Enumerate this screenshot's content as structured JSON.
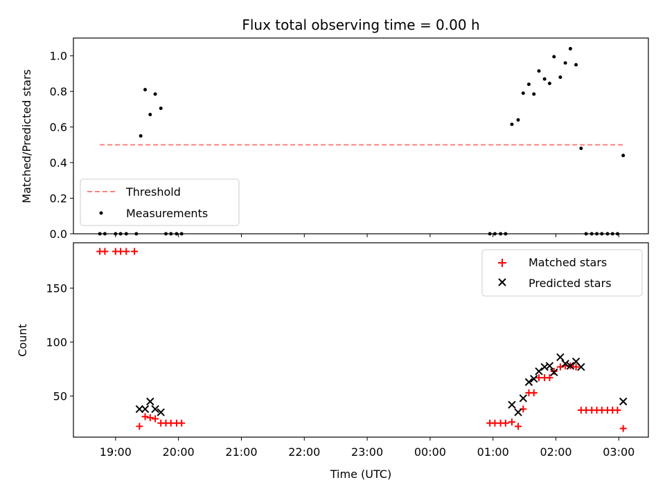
{
  "chart_data": [
    {
      "type": "scatter",
      "title": "Flux total observing time = 0.00 h",
      "ylabel": "Matched/Predicted stars",
      "xlabel": "",
      "ylim": [
        0,
        1.1
      ],
      "yticks": [
        "0.0",
        "0.2",
        "0.4",
        "0.6",
        "0.8",
        "1.0"
      ],
      "legend_position": "lower-left",
      "threshold": {
        "name": "Threshold",
        "value": 0.5,
        "x_start": 18.75,
        "x_end": 27.08,
        "color": "#ff7f7f"
      },
      "series": [
        {
          "name": "Measurements",
          "color": "#000000",
          "points": [
            [
              18.75,
              0.0
            ],
            [
              18.83,
              0.0
            ],
            [
              19.0,
              0.0
            ],
            [
              19.08,
              0.0
            ],
            [
              19.17,
              0.0
            ],
            [
              19.33,
              0.0
            ],
            [
              19.4,
              0.55
            ],
            [
              19.47,
              0.81
            ],
            [
              19.55,
              0.67
            ],
            [
              19.63,
              0.785
            ],
            [
              19.72,
              0.705
            ],
            [
              19.8,
              0.0
            ],
            [
              19.88,
              0.0
            ],
            [
              19.97,
              0.0
            ],
            [
              20.05,
              0.0
            ],
            [
              24.95,
              0.0
            ],
            [
              25.03,
              0.0
            ],
            [
              25.12,
              0.0
            ],
            [
              25.2,
              0.0
            ],
            [
              25.3,
              0.615
            ],
            [
              25.4,
              0.64
            ],
            [
              25.48,
              0.79
            ],
            [
              25.57,
              0.84
            ],
            [
              25.65,
              0.785
            ],
            [
              25.73,
              0.915
            ],
            [
              25.82,
              0.87
            ],
            [
              25.9,
              0.845
            ],
            [
              25.97,
              0.995
            ],
            [
              26.07,
              0.88
            ],
            [
              26.15,
              0.96
            ],
            [
              26.23,
              1.04
            ],
            [
              26.32,
              0.95
            ],
            [
              26.4,
              0.48
            ],
            [
              26.48,
              0.0
            ],
            [
              26.57,
              0.0
            ],
            [
              26.65,
              0.0
            ],
            [
              26.73,
              0.0
            ],
            [
              26.82,
              0.0
            ],
            [
              26.9,
              0.0
            ],
            [
              26.98,
              0.0
            ],
            [
              27.07,
              0.44
            ]
          ]
        }
      ]
    },
    {
      "type": "scatter",
      "title": "",
      "xlabel": "Time (UTC)",
      "ylabel": "Count",
      "ylim": [
        12,
        192
      ],
      "yticks": [
        "50",
        "100",
        "150"
      ],
      "xticks": [
        "19:00",
        "20:00",
        "21:00",
        "22:00",
        "23:00",
        "00:00",
        "01:00",
        "02:00",
        "03:00"
      ],
      "xlim": [
        18.33,
        27.47
      ],
      "legend_position": "upper-right",
      "series": [
        {
          "name": "Matched stars",
          "color": "#ff0000",
          "marker": "+",
          "points": [
            [
              18.75,
              184
            ],
            [
              18.83,
              184
            ],
            [
              19.0,
              184
            ],
            [
              19.08,
              184
            ],
            [
              19.17,
              184
            ],
            [
              19.3,
              184
            ],
            [
              19.38,
              22
            ],
            [
              19.47,
              31
            ],
            [
              19.55,
              30
            ],
            [
              19.63,
              29
            ],
            [
              19.72,
              25
            ],
            [
              19.8,
              25
            ],
            [
              19.88,
              25
            ],
            [
              19.97,
              25
            ],
            [
              20.05,
              25
            ],
            [
              24.95,
              25
            ],
            [
              25.03,
              25
            ],
            [
              25.12,
              25
            ],
            [
              25.2,
              25
            ],
            [
              25.3,
              26
            ],
            [
              25.4,
              22
            ],
            [
              25.48,
              38
            ],
            [
              25.57,
              53
            ],
            [
              25.65,
              53
            ],
            [
              25.73,
              67
            ],
            [
              25.82,
              67
            ],
            [
              25.9,
              67
            ],
            [
              25.97,
              73
            ],
            [
              26.07,
              77
            ],
            [
              26.15,
              78
            ],
            [
              26.23,
              78
            ],
            [
              26.32,
              77
            ],
            [
              26.4,
              37
            ],
            [
              26.48,
              37
            ],
            [
              26.57,
              37
            ],
            [
              26.65,
              37
            ],
            [
              26.73,
              37
            ],
            [
              26.82,
              37
            ],
            [
              26.9,
              37
            ],
            [
              26.98,
              37
            ],
            [
              27.07,
              20
            ]
          ]
        },
        {
          "name": "Predicted stars",
          "color": "#000000",
          "marker": "x",
          "points": [
            [
              19.38,
              38
            ],
            [
              19.47,
              38
            ],
            [
              19.55,
              45
            ],
            [
              19.63,
              38
            ],
            [
              19.72,
              35
            ],
            [
              25.3,
              42
            ],
            [
              25.4,
              35
            ],
            [
              25.48,
              48
            ],
            [
              25.57,
              63
            ],
            [
              25.65,
              66
            ],
            [
              25.73,
              73
            ],
            [
              25.82,
              77
            ],
            [
              25.9,
              78
            ],
            [
              25.97,
              72
            ],
            [
              26.07,
              86
            ],
            [
              26.15,
              80
            ],
            [
              26.23,
              78
            ],
            [
              26.32,
              82
            ],
            [
              26.4,
              77
            ],
            [
              27.07,
              45
            ]
          ]
        }
      ]
    }
  ]
}
